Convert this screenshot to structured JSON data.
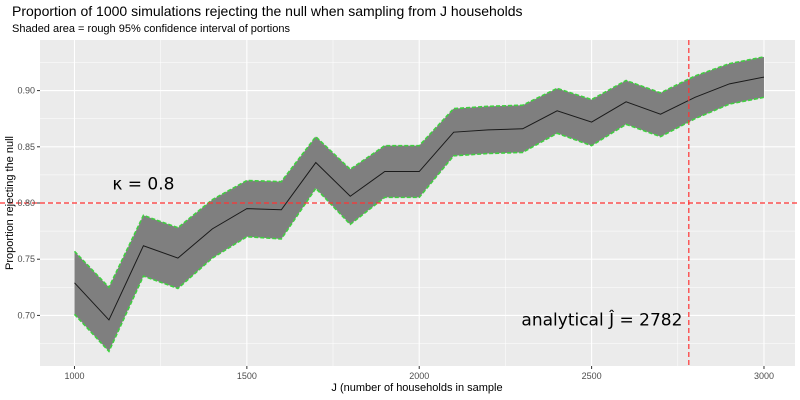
{
  "chart_data": {
    "type": "line",
    "title": "Proportion of 1000 simulations rejecting the null when sampling from J households",
    "subtitle": "Shaded area = rough 95% confidence interval of portions",
    "xlabel": "J (number of households in sample",
    "ylabel": "Proportion rejecting the null",
    "xlim": [
      900,
      3090
    ],
    "ylim": [
      0.655,
      0.945
    ],
    "x_ticks": [
      1000,
      1500,
      2000,
      2500,
      3000
    ],
    "x_tick_labels": [
      "1000",
      "1500",
      "2000",
      "2500",
      "3000"
    ],
    "y_ticks": [
      0.7,
      0.75,
      0.8,
      0.85,
      0.9
    ],
    "y_tick_labels": [
      "0.70",
      "0.75",
      "0.80",
      "0.85",
      "0.90"
    ],
    "grid": true,
    "x": [
      1000,
      1100,
      1200,
      1300,
      1400,
      1500,
      1600,
      1700,
      1800,
      1900,
      2000,
      2100,
      2200,
      2300,
      2400,
      2500,
      2600,
      2700,
      2800,
      2900,
      3000
    ],
    "series": [
      {
        "values": [
          0.729,
          0.696,
          0.762,
          0.751,
          0.777,
          0.795,
          0.794,
          0.836,
          0.806,
          0.828,
          0.828,
          0.863,
          0.865,
          0.866,
          0.882,
          0.872,
          0.89,
          0.879,
          0.894,
          0.906,
          0.912
        ],
        "lower": [
          0.701,
          0.668,
          0.735,
          0.724,
          0.751,
          0.77,
          0.768,
          0.813,
          0.781,
          0.805,
          0.805,
          0.842,
          0.844,
          0.845,
          0.862,
          0.851,
          0.87,
          0.859,
          0.875,
          0.888,
          0.894
        ],
        "upper": [
          0.757,
          0.725,
          0.789,
          0.778,
          0.803,
          0.82,
          0.819,
          0.859,
          0.83,
          0.851,
          0.851,
          0.884,
          0.886,
          0.887,
          0.902,
          0.892,
          0.909,
          0.898,
          0.913,
          0.924,
          0.93
        ]
      }
    ],
    "reference_lines": [
      {
        "orientation": "horizontal",
        "value": 0.8,
        "color": "#ff3333"
      },
      {
        "orientation": "vertical",
        "value": 2782,
        "color": "#ff3333"
      }
    ],
    "annotations": [
      {
        "text": "κ = 0.8",
        "x": 1200,
        "y": 0.812
      },
      {
        "text": "analytical Ĵ = 2782",
        "x": 2530,
        "y": 0.691
      }
    ],
    "colors": {
      "panel": "#ebebeb",
      "grid_major": "#ffffff",
      "ribbon": "#7f7f7f",
      "ribbon_edge": "#3fcf3f",
      "line": "#1a1a1a",
      "tick": "#333333"
    }
  }
}
